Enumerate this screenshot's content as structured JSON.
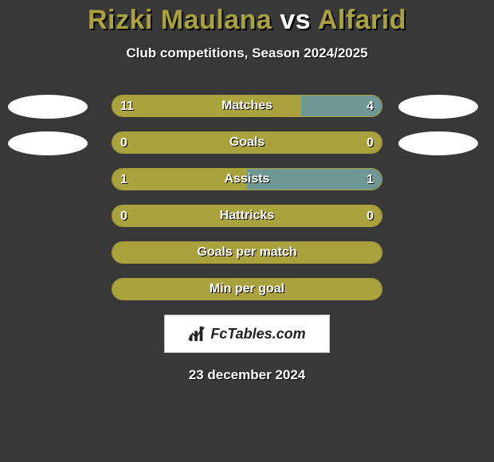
{
  "title": {
    "left": "Rizki Maulana",
    "mid": "vs",
    "right": "Alfarid"
  },
  "subtitle": "Club competitions, Season 2024/2025",
  "colors": {
    "background": "#383838",
    "left_bar": "#aaa23c",
    "right_bar": "#6f9895",
    "border": "#aaa23c",
    "text": "#ffffff",
    "shadow": "#000000",
    "badge": "#ffffff"
  },
  "rows": [
    {
      "label": "Matches",
      "left_val": "11",
      "right_val": "4",
      "left_pct": 70,
      "right_pct": 30,
      "show_badges": true
    },
    {
      "label": "Goals",
      "left_val": "0",
      "right_val": "0",
      "left_pct": 100,
      "right_pct": 0,
      "show_badges": true
    },
    {
      "label": "Assists",
      "left_val": "1",
      "right_val": "1",
      "left_pct": 50,
      "right_pct": 50,
      "show_badges": false
    },
    {
      "label": "Hattricks",
      "left_val": "0",
      "right_val": "0",
      "left_pct": 100,
      "right_pct": 0,
      "show_badges": false
    },
    {
      "label": "Goals per match",
      "left_val": "",
      "right_val": "",
      "left_pct": 100,
      "right_pct": 0,
      "show_badges": false
    },
    {
      "label": "Min per goal",
      "left_val": "",
      "right_val": "",
      "left_pct": 100,
      "right_pct": 0,
      "show_badges": false
    }
  ],
  "brand": "FcTables.com",
  "date": "23 december 2024"
}
